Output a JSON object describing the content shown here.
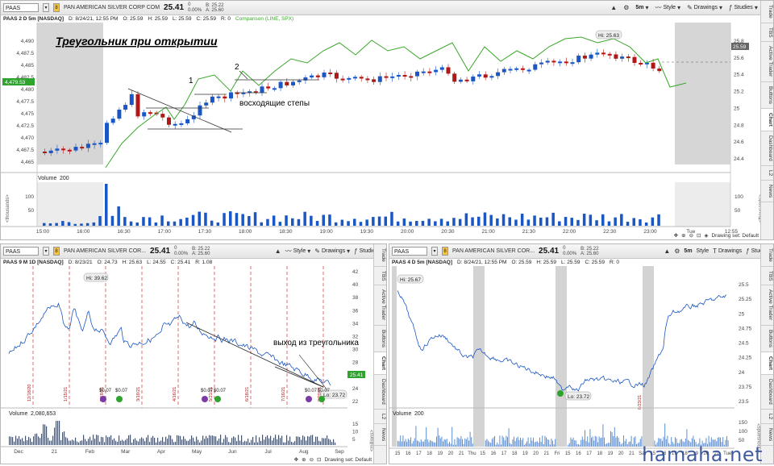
{
  "top": {
    "symbol": "PAAS",
    "company": "PAN AMERICAN SILVER CORP COM",
    "price": "25.41",
    "change_pct": "0",
    "change_sub": "0.00%",
    "bid": "B: 25.22",
    "ask": "A: 25.60",
    "toolbar": {
      "timeframe": "5m",
      "style": "Style",
      "drawings": "Drawings",
      "studies": "Studies"
    },
    "info": {
      "title": "PAAS 2 D 5m [NASDAQ]",
      "date": "D: 8/24/21, 12:55 PM",
      "open": "O: 25.59",
      "high": "H: 25.59",
      "low": "L: 25.59",
      "close": "C: 25.59",
      "r": "R: 0",
      "comparison": "Comparison (LINE, SPX)"
    },
    "title_annotation": "Треугольник при открытии",
    "label_1": "1",
    "label_2": "2",
    "label_steps": "восходящие степы",
    "hi_label": "Hi: 25.63",
    "left_axis": [
      "4,490",
      "4,487.5",
      "4,485",
      "4,482.5",
      "4,480",
      "4,477.5",
      "4,475",
      "4,472.5",
      "4,470",
      "4,467.5",
      "4,465"
    ],
    "left_marker": "4,479.53",
    "right_axis": [
      "25.8",
      "25.6",
      "25.4",
      "25.2",
      "25",
      "24.8",
      "24.6",
      "24.4"
    ],
    "right_marker": "25.59",
    "volume_label": "Volume",
    "volume_value": "200",
    "volume_axis": [
      "100",
      "50"
    ],
    "volume_unit": "<thousands>",
    "time_axis": [
      "15:00",
      "16:00",
      "16:30",
      "17:00",
      "17:30",
      "18:00",
      "18:30",
      "19:00",
      "19:30",
      "20:00",
      "20:30",
      "21:00",
      "21:30",
      "22:00",
      "22:30",
      "23:00",
      "Tue",
      "12:55"
    ],
    "drawing_set": "Drawing set: Default",
    "side_tabs": [
      "Trade",
      "TBS",
      "Active Trader",
      "Buttons",
      "Chart",
      "Dashboard",
      "L2",
      "News"
    ]
  },
  "bl": {
    "symbol": "PAAS",
    "company": "PAN AMERICAN SILVER COR...",
    "price": "25.41",
    "change_pct": "0",
    "change_sub": "0.00%",
    "bid": "B: 25.22",
    "ask": "A: 25.60",
    "toolbar": {
      "timeframe": "1D",
      "style": "Style",
      "drawings": "Drawings",
      "studies": "Studies"
    },
    "info": {
      "title": "PAAS 9 M 1D [NASDAQ]",
      "date": "D: 8/23/21",
      "open": "O: 24.73",
      "high": "H: 25.63",
      "low": "L: 24.55",
      "close": "C: 25.41",
      "r": "R: 1.08"
    },
    "hi_label": "Hi: 39.62",
    "lo_label": "Lo: 23.72",
    "exit_label": "выход из треугольника",
    "price_axis": [
      "42",
      "40",
      "38",
      "36",
      "34",
      "32",
      "30",
      "28",
      "26",
      "24",
      "22"
    ],
    "price_marker": "25.41",
    "vert_dates": [
      "12/18/20",
      "1/15/21",
      "2/18/21",
      "3/19/21",
      "4/16/21",
      "5/21/21",
      "6/18/21",
      "7/16/21",
      "8/20/21"
    ],
    "div_labels": [
      "$0.07",
      "$0.07",
      "$0.07",
      "$0.07",
      "$0.07",
      "$0.07"
    ],
    "volume_label": "Volume",
    "volume_value": "2,080,653",
    "volume_axis": [
      "15",
      "10",
      "5"
    ],
    "volume_unit": "<millions>",
    "time_axis": [
      "Dec",
      "21",
      "Feb",
      "Mar",
      "Apr",
      "May",
      "Jun",
      "Jul",
      "Aug",
      "Sep"
    ],
    "drawing_set": "Drawing set: Default",
    "side_tabs": [
      "Trade",
      "TBS",
      "Active Trader",
      "Buttons",
      "Chart",
      "Dashboard",
      "L2",
      "News"
    ]
  },
  "br": {
    "symbol": "PAAS",
    "company": "PAN AMERICAN SILVER COR...",
    "price": "25.41",
    "change_pct": "0",
    "change_sub": "0.00%",
    "bid": "B: 25.22",
    "ask": "A: 25.60",
    "toolbar": {
      "timeframe": "5m",
      "style": "Style",
      "drawings": "Drawings",
      "studies": "Studies"
    },
    "info": {
      "title": "PAAS 4 D 5m [NASDAQ]",
      "date": "D: 8/24/21, 12:55 PM",
      "open": "O: 25.59",
      "high": "H: 25.59",
      "low": "L: 25.59",
      "close": "C: 25.59",
      "r": "R: 0"
    },
    "hi_label": "Hi: 25.67",
    "lo_label": "Lo: 23.72",
    "price_axis": [
      "25.5",
      "25.25",
      "25",
      "24.75",
      "24.5",
      "24.25",
      "24",
      "23.75",
      "23.5"
    ],
    "date_label": "8/23/21",
    "volume_label": "Volume",
    "volume_value": "200",
    "volume_axis": [
      "150",
      "100",
      "50"
    ],
    "volume_unit": "<thousands>",
    "time_axis": [
      "15",
      "16",
      "17",
      "18",
      "19",
      "20",
      "21",
      "Thu",
      "15",
      "16",
      "17",
      "18",
      "19",
      "20",
      "21",
      "Fri",
      "15",
      "16",
      "17",
      "18",
      "19",
      "20",
      "21",
      "Sat",
      "15",
      "16",
      "17",
      "18",
      "19",
      "20",
      "21",
      "Tue"
    ],
    "side_tabs": [
      "Trade",
      "TBS",
      "Active Trader",
      "Buttons",
      "Chart",
      "Dashboard",
      "L2",
      "News"
    ]
  },
  "watermark": "hamaha.net",
  "colors": {
    "up": "#1a56c4",
    "down": "#b01818",
    "comparison": "#3aa62a",
    "session_gray": "#c8c8c8"
  }
}
